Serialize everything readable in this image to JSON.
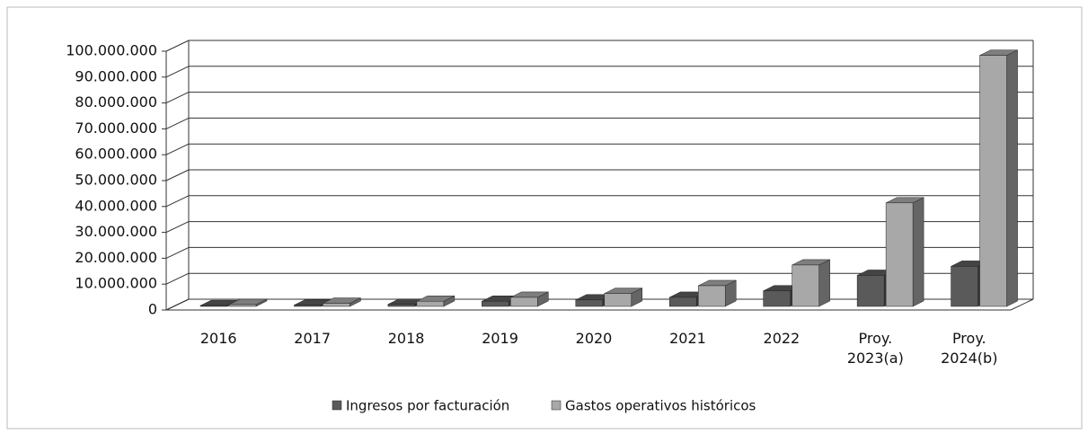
{
  "chart_data": {
    "type": "bar3d",
    "categories": [
      "2016",
      "2017",
      "2018",
      "2019",
      "2020",
      "2021",
      "2022",
      "Proy. 2023(a)",
      "Proy. 2024(b)"
    ],
    "series": [
      {
        "name": "Ingresos por facturación",
        "color": "#5a5a5a",
        "values": [
          300000,
          500000,
          800000,
          2000000,
          2500000,
          3500000,
          6000000,
          12000000,
          15500000
        ]
      },
      {
        "name": "Gastos operativos históricos",
        "color": "#a8a8a8",
        "values": [
          700000,
          1200000,
          2000000,
          3500000,
          5000000,
          8000000,
          16000000,
          40000000,
          97000000
        ]
      }
    ],
    "ylim": [
      0,
      100000000
    ],
    "yticks": [
      0,
      {
        "value": 10000000,
        "label": "10.000.000"
      },
      {
        "value": 20000000,
        "label": "20.000.000"
      },
      {
        "value": 30000000,
        "label": "30.000.000"
      },
      {
        "value": 40000000,
        "label": "40.000.000"
      },
      {
        "value": 50000000,
        "label": "50.000.000"
      },
      {
        "value": 60000000,
        "label": "60.000.000"
      },
      {
        "value": 70000000,
        "label": "70.000.000"
      },
      {
        "value": 80000000,
        "label": "80.000.000"
      },
      {
        "value": 90000000,
        "label": "90.000.000"
      },
      {
        "value": 100000000,
        "label": "100.000.000"
      }
    ],
    "grid": true,
    "legend": "bottom"
  }
}
